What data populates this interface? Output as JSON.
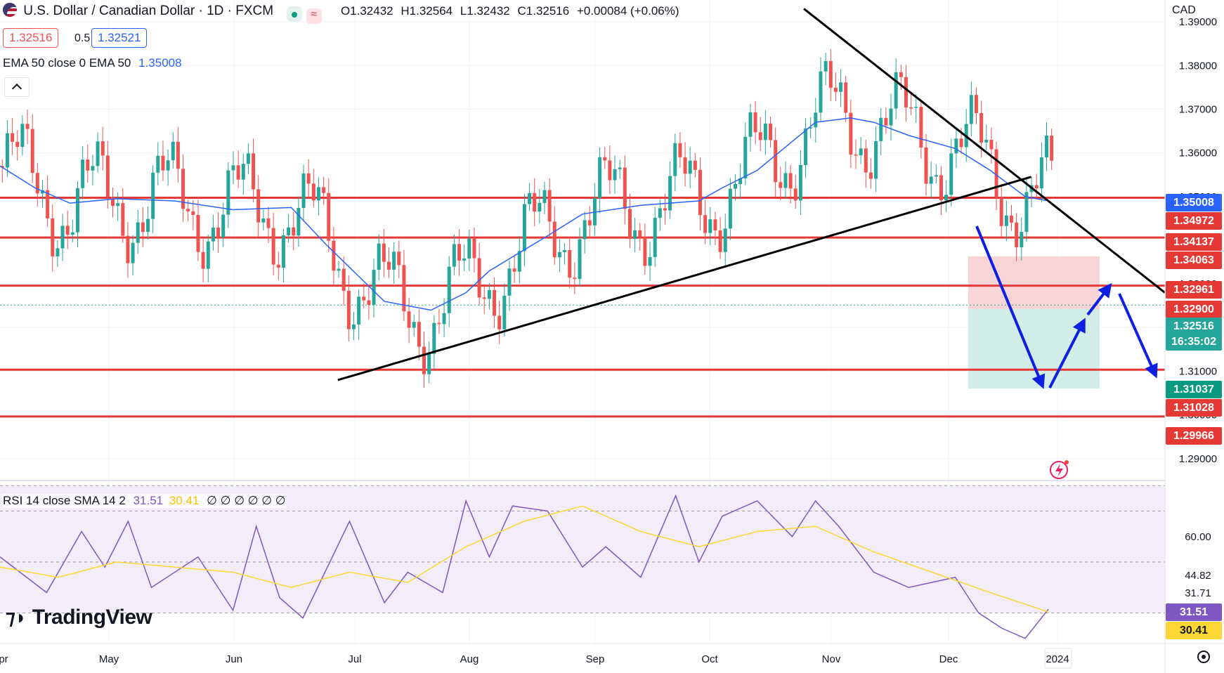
{
  "header": {
    "symbol_title": "U.S. Dollar / Canadian Dollar · 1D · FXCM",
    "ohlc": {
      "o": "O1.32432",
      "h": "H1.32564",
      "l": "L1.32432",
      "c": "C1.32516",
      "chg": "+0.00084 (+0.06%)"
    },
    "bid": "1.32516",
    "spread": "0.5",
    "ask": "1.32521",
    "ema_label": "EMA 50 close 0 EMA 50",
    "ema_value": "1.35008",
    "currency": "CAD",
    "rsi_label": "RSI 14 close SMA 14 2",
    "rsi_value": "31.51",
    "rsi_sma_value": "30.41",
    "rsi_extra": "∅ ∅ ∅ ∅ ∅ ∅",
    "logo_text": "TradingView"
  },
  "colors": {
    "up": "#26a69a",
    "down": "#ef5350",
    "level": "#e53935",
    "ema": "#2962ff",
    "rsi": "#7e57c2",
    "rsi_sma": "#fdd835",
    "arrow": "#0d1fe0"
  },
  "chart_data": [
    {
      "type": "candlestick",
      "title": "U.S. Dollar / Canadian Dollar · 1D · FXCM",
      "x_labels": [
        "May",
        "Jun",
        "Jul",
        "Aug",
        "Sep",
        "Oct",
        "Nov",
        "Dec",
        "2024"
      ],
      "x_first_partial_label": "Apr",
      "ylim": [
        1.285,
        1.395
      ],
      "y_ticks": [
        "1.39000",
        "1.38000",
        "1.37000",
        "1.36000",
        "1.35000",
        "1.34000",
        "1.33000",
        "1.32000",
        "1.31000",
        "1.30000",
        "1.29000"
      ],
      "series": [
        {
          "name": "EMA 50",
          "color": "#2962ff",
          "x": [
            0,
            0.03,
            0.06,
            0.1,
            0.15,
            0.2,
            0.25,
            0.28,
            0.33,
            0.37,
            0.4,
            0.42,
            0.47,
            0.5,
            0.55,
            0.6,
            0.62,
            0.65,
            0.7,
            0.73,
            0.75,
            0.78,
            0.82,
            0.85,
            0.88,
            0.9
          ],
          "values": [
            1.357,
            1.352,
            1.3485,
            1.3495,
            1.349,
            1.347,
            1.3475,
            1.339,
            1.326,
            1.324,
            1.328,
            1.333,
            1.341,
            1.346,
            1.348,
            1.349,
            1.352,
            1.356,
            1.367,
            1.368,
            1.367,
            1.364,
            1.361,
            1.356,
            1.35,
            1.349
          ]
        }
      ],
      "horizontal_levels": [
        1.34972,
        1.34063,
        1.32961,
        1.31037,
        1.29966
      ],
      "trend_lines": [
        {
          "from": [
            0.29,
            1.308
          ],
          "to": [
            0.885,
            1.3545
          ]
        },
        {
          "from": [
            0.69,
            1.393
          ],
          "to": [
            1.0,
            1.328
          ]
        }
      ],
      "price_tags": [
        {
          "text": "1.35008",
          "value": 1.35008,
          "color": "#2962ff"
        },
        {
          "text": "1.34972",
          "value": 1.34972,
          "color": "#e53935"
        },
        {
          "text": "1.34137",
          "value": 1.34137,
          "color": "#e53935"
        },
        {
          "text": "1.34063",
          "value": 1.34063,
          "color": "#e53935"
        },
        {
          "text": "1.32961",
          "value": 1.32961,
          "color": "#e53935"
        },
        {
          "text": "1.32900",
          "value": 1.329,
          "color": "#e53935"
        },
        {
          "text": "1.32516",
          "value": 1.32516,
          "color": "#26a69a"
        },
        {
          "text": "16:35:02",
          "value": 1.3225,
          "color": "#26a69a"
        },
        {
          "text": "1.31037",
          "value": 1.31037,
          "color": "#089981"
        },
        {
          "text": "1.31028",
          "value": 1.31028,
          "color": "#e53935"
        },
        {
          "text": "1.29966",
          "value": 1.29966,
          "color": "#e53935"
        }
      ]
    },
    {
      "type": "line",
      "title": "RSI 14 close SMA 14 2",
      "ylim": [
        18,
        82
      ],
      "y_ticks": [
        "60.00",
        "44.82",
        "31.71",
        "31.51",
        "30.41"
      ],
      "series": [
        {
          "name": "RSI 14",
          "color": "#7e57c2",
          "x": [
            0,
            0.04,
            0.07,
            0.09,
            0.11,
            0.13,
            0.17,
            0.2,
            0.22,
            0.24,
            0.26,
            0.3,
            0.33,
            0.35,
            0.38,
            0.4,
            0.42,
            0.44,
            0.47,
            0.5,
            0.52,
            0.55,
            0.58,
            0.6,
            0.62,
            0.65,
            0.68,
            0.7,
            0.72,
            0.75,
            0.78,
            0.82,
            0.84,
            0.86,
            0.88,
            0.9
          ],
          "values": [
            52,
            38,
            62,
            48,
            66,
            40,
            52,
            31,
            64,
            36,
            28,
            66,
            34,
            46,
            38,
            74,
            52,
            72,
            70,
            48,
            56,
            44,
            76,
            50,
            68,
            74,
            60,
            74,
            64,
            46,
            40,
            44,
            30,
            24,
            20,
            31.5
          ]
        },
        {
          "name": "SMA 14",
          "color": "#fdd835",
          "x": [
            0,
            0.05,
            0.1,
            0.15,
            0.2,
            0.25,
            0.3,
            0.35,
            0.4,
            0.45,
            0.5,
            0.55,
            0.6,
            0.65,
            0.7,
            0.75,
            0.8,
            0.85,
            0.9
          ],
          "values": [
            48,
            44,
            50,
            48,
            46,
            40,
            46,
            42,
            56,
            66,
            72,
            62,
            56,
            62,
            64,
            54,
            46,
            38,
            30.4
          ]
        }
      ],
      "reference_levels": [
        80,
        70,
        50,
        30
      ]
    }
  ]
}
